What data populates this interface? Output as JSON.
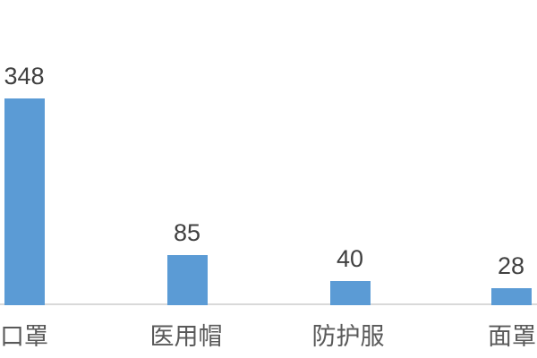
{
  "chart_data": {
    "type": "bar",
    "categories": [
      "口罩",
      "医用帽",
      "防护服",
      "面罩"
    ],
    "values": [
      348,
      85,
      40,
      28
    ],
    "title": "",
    "xlabel": "",
    "ylabel": "",
    "ylim": [
      0,
      360
    ],
    "grid": false,
    "legend": false,
    "data_labels": true,
    "bar_color": "#5B9BD5",
    "value_label_color": "#404040",
    "category_label_color": "#595959",
    "axis_line_color": "#D9D9D9",
    "background_color": "#FFFFFF"
  }
}
